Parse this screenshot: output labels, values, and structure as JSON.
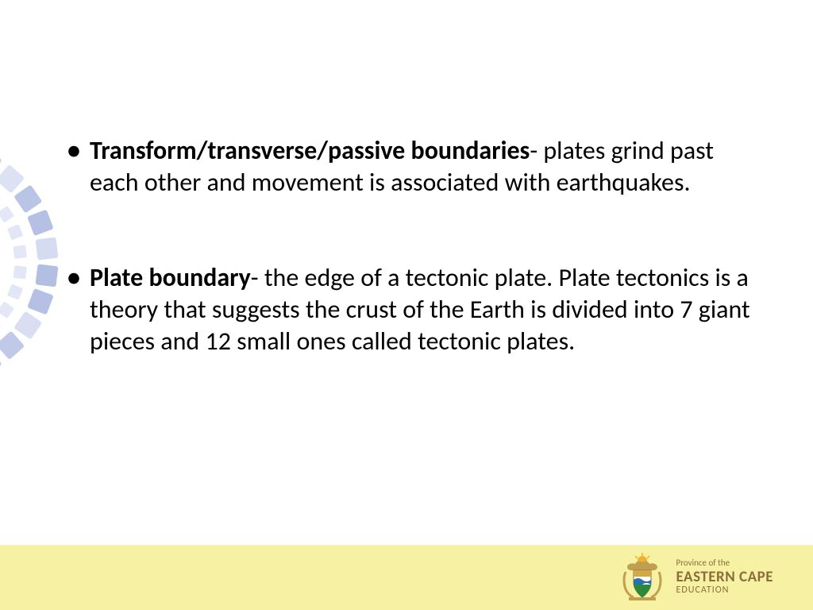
{
  "decoration": {
    "square_fill": "#9aa8d9",
    "square_fill_light": "#c7cfec",
    "square_size": 26,
    "arc_radius": 140
  },
  "bullets": [
    {
      "term": "Transform/transverse/passive boundaries",
      "def": "- plates grind past each other and movement is associated with earthquakes."
    },
    {
      "term": "Plate boundary",
      "def": "- the edge of a tectonic plate. Plate tectonics is a theory that suggests the crust of the Earth is divided into 7 giant pieces and 12 small ones called tectonic plates."
    }
  ],
  "footer": {
    "bg": "#f7f2a3",
    "text_color": "#8a6d3b",
    "line1": "Province of the",
    "line2": "EASTERN CAPE",
    "line3": "EDUCATION",
    "crest": {
      "shield_top": "#d4a84a",
      "shield_mid": "#ffffff",
      "shield_wave": "#2a6fb0",
      "shield_bottom": "#2a8a3a",
      "wreath": "#c0a050",
      "sun": "#f0b030"
    }
  },
  "text_color": "#000000",
  "font_size_pt": 24
}
